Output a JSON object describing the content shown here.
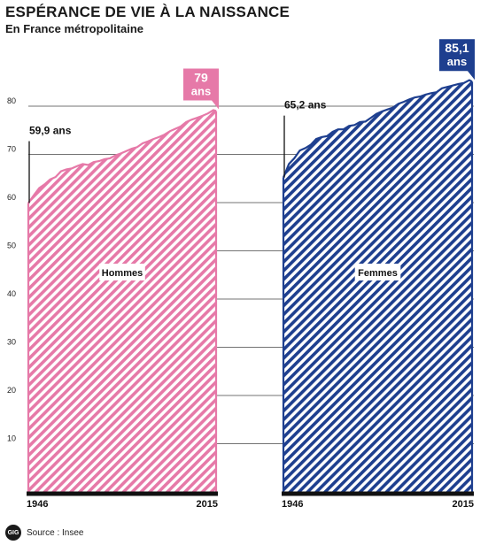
{
  "header": {
    "title": "ESPÉRANCE DE VIE À LA NAISSANCE",
    "subtitle": "En France métropolitaine"
  },
  "footer": {
    "logo_text": "GIG",
    "source": "Source : Insee"
  },
  "colors": {
    "hommes": "#e679a8",
    "femmes": "#1e3f8f",
    "axis": "#111111",
    "grid": "#444444"
  },
  "chart_data": [
    {
      "type": "area",
      "series": [
        {
          "name": "Hommes",
          "x": [
            1946,
            1948,
            1950,
            1952,
            1954,
            1956,
            1958,
            1960,
            1962,
            1964,
            1966,
            1968,
            1970,
            1972,
            1974,
            1976,
            1978,
            1980,
            1982,
            1984,
            1986,
            1988,
            1990,
            1992,
            1994,
            1996,
            1998,
            2000,
            2002,
            2004,
            2006,
            2008,
            2010,
            2012,
            2014,
            2015
          ],
          "values": [
            59.9,
            61.5,
            63.0,
            63.8,
            64.8,
            65.3,
            66.5,
            66.9,
            67.1,
            67.6,
            68.0,
            67.8,
            68.4,
            68.6,
            69.0,
            69.2,
            69.8,
            70.2,
            70.7,
            71.2,
            71.5,
            72.3,
            72.7,
            73.2,
            73.6,
            74.1,
            74.8,
            75.3,
            75.8,
            76.7,
            77.2,
            77.6,
            78.0,
            78.5,
            79.2,
            79.0
          ]
        }
      ],
      "ylim": [
        0,
        85
      ],
      "yticks": [
        10,
        20,
        30,
        40,
        50,
        60,
        70,
        80
      ],
      "xticks": [
        1946,
        2015
      ],
      "area_label": "Hommes",
      "annotations": {
        "start": "59,9 ans",
        "end_value": "79",
        "end_unit": "ans"
      },
      "grid": true
    },
    {
      "type": "area",
      "series": [
        {
          "name": "Femmes",
          "x": [
            1946,
            1948,
            1950,
            1952,
            1954,
            1956,
            1958,
            1960,
            1962,
            1964,
            1966,
            1968,
            1970,
            1972,
            1974,
            1976,
            1978,
            1980,
            1982,
            1984,
            1986,
            1988,
            1990,
            1992,
            1994,
            1996,
            1998,
            2000,
            2002,
            2004,
            2006,
            2008,
            2010,
            2012,
            2014,
            2015
          ],
          "values": [
            65.2,
            68.0,
            69.2,
            70.8,
            71.3,
            72.0,
            73.2,
            73.6,
            73.8,
            74.7,
            75.2,
            75.2,
            75.9,
            76.1,
            76.7,
            76.8,
            77.6,
            78.4,
            78.9,
            79.3,
            79.7,
            80.5,
            80.9,
            81.4,
            81.8,
            82.0,
            82.4,
            82.7,
            82.9,
            83.7,
            84.0,
            84.3,
            84.6,
            84.8,
            85.4,
            85.1
          ]
        }
      ],
      "ylim": [
        0,
        85
      ],
      "xticks": [
        1946,
        2015
      ],
      "area_label": "Femmes",
      "annotations": {
        "start": "65,2 ans",
        "end_value": "85,1",
        "end_unit": "ans"
      },
      "grid": true
    }
  ]
}
